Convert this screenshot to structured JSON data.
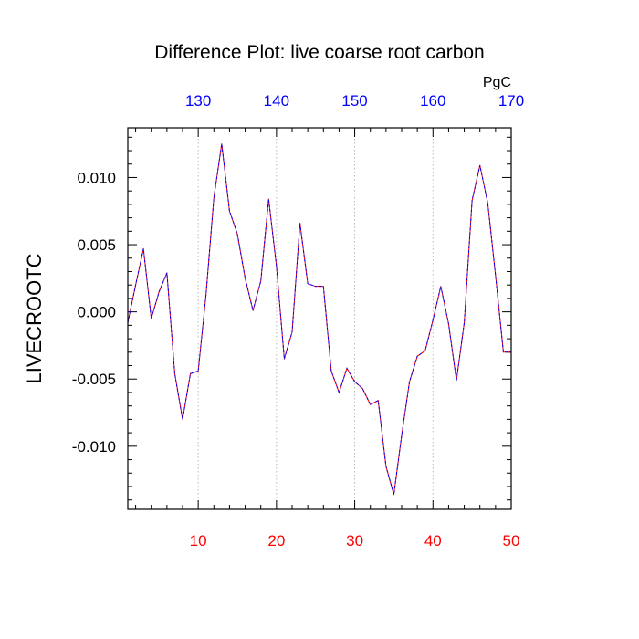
{
  "chart_data": {
    "type": "line",
    "title": "Difference Plot: live coarse root carbon",
    "ylabel": "LIVECROOTC",
    "units_label": "PgC",
    "xlim": [
      1,
      50
    ],
    "ylim": [
      -0.0147,
      0.0137
    ],
    "bottom_ticks": [
      10,
      20,
      30,
      40,
      50
    ],
    "top_ticks": [
      "130",
      "140",
      "150",
      "160",
      "170"
    ],
    "y_ticks": [
      0.01,
      0.005,
      0.0,
      -0.005,
      -0.01
    ],
    "y_tick_labels": [
      "0.010",
      "0.005",
      "0.000",
      "-0.005",
      "-0.010"
    ],
    "colors": {
      "bottom_tick_labels": "#ff0000",
      "top_tick_labels": "#0000ff",
      "series_a": "#ff0000",
      "series_b": "#0000ff",
      "grid": "#aaaaaa"
    },
    "grid": "vertical dotted lines at major x ticks",
    "series": [
      {
        "values": [
          -0.0008,
          0.002,
          0.0047,
          -0.0005,
          0.0015,
          0.0029,
          -0.0046,
          -0.008,
          -0.0046,
          -0.0044,
          0.0013,
          0.0085,
          0.0125,
          0.0075,
          0.0058,
          0.0025,
          0.0001,
          0.0023,
          0.0084,
          0.0034,
          -0.0035,
          -0.0015,
          0.0066,
          0.0021,
          0.0019,
          0.0019,
          -0.0044,
          -0.006,
          -0.0042,
          -0.0052,
          -0.0057,
          -0.0069,
          -0.0066,
          -0.0115,
          -0.0136,
          -0.0092,
          -0.0052,
          -0.0033,
          -0.0029,
          -0.0006,
          0.0019,
          -0.0009,
          -0.0051,
          -0.0008,
          0.0083,
          0.0109,
          0.0081,
          0.0027,
          -0.003,
          -0.003
        ]
      }
    ]
  }
}
